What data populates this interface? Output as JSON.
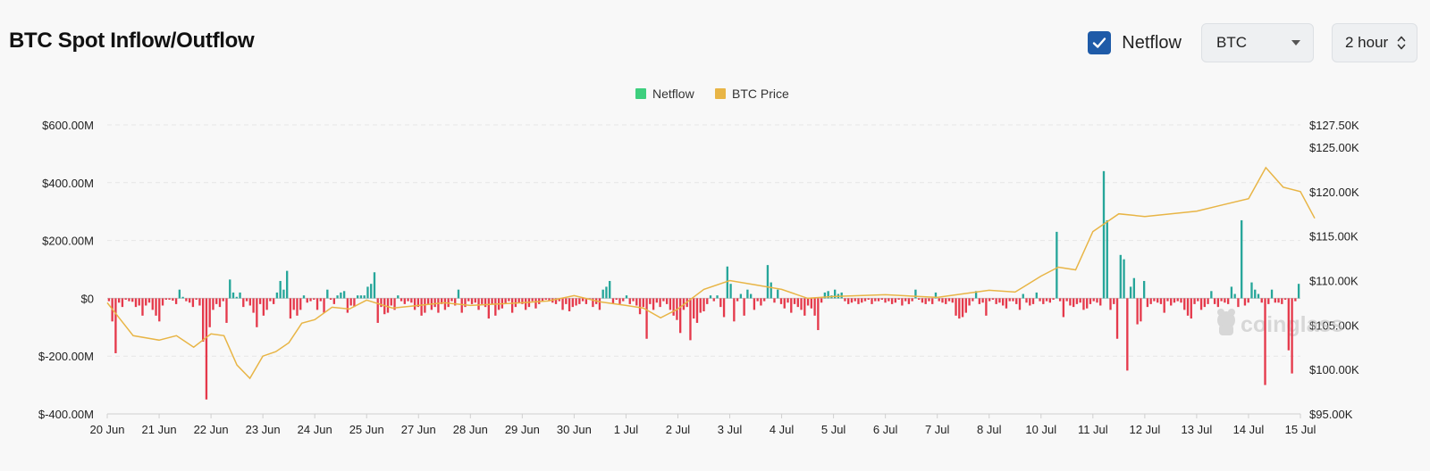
{
  "header": {
    "title": "BTC Spot Inflow/Outflow",
    "netflow_toggle": {
      "label": "Netflow",
      "checked": true
    },
    "asset_select": {
      "value": "BTC"
    },
    "interval_select": {
      "value": "2 hour"
    }
  },
  "watermark": "coinglass",
  "colors": {
    "positive": "#26a69a",
    "negative": "#e5394b",
    "price": "#e8b546",
    "legend_netflow": "#3ecf7e",
    "legend_price": "#e8b546"
  },
  "chart_data": {
    "type": "bar",
    "legend": [
      "Netflow",
      "BTC Price"
    ],
    "legend_placement": "top-center",
    "grid": true,
    "x_ticks": [
      "20 Jun",
      "21 Jun",
      "22 Jun",
      "23 Jun",
      "24 Jun",
      "25 Jun",
      "27 Jun",
      "28 Jun",
      "29 Jun",
      "30 Jun",
      "1 Jul",
      "2 Jul",
      "3 Jul",
      "4 Jul",
      "5 Jul",
      "6 Jul",
      "7 Jul",
      "8 Jul",
      "10 Jul",
      "11 Jul",
      "12 Jul",
      "13 Jul",
      "14 Jul",
      "15 Jul"
    ],
    "y_left": {
      "ticks": [
        600000000,
        400000000,
        200000000,
        0,
        -200000000,
        -400000000
      ],
      "tick_labels": [
        "$600.00M",
        "$400.00M",
        "$200.00M",
        "$0",
        "$-200.00M",
        "$-400.00M"
      ],
      "range": [
        -400000000,
        600000000
      ]
    },
    "y_right": {
      "ticks": [
        127500,
        125000,
        120000,
        115000,
        110000,
        105000,
        100000,
        95000
      ],
      "tick_labels": [
        "$127.50K",
        "$125.00K",
        "$120.00K",
        "$115.00K",
        "$110.00K",
        "$105.00K",
        "$100.00K",
        "$95.00K"
      ],
      "range": [
        95000,
        127500
      ]
    },
    "series": [
      {
        "name": "Netflow",
        "type": "bar",
        "axis": "left",
        "x_start": "20 Jun",
        "x_end": "15 Jul",
        "values": [
          -10,
          -80,
          -190,
          -15,
          -30,
          -5,
          -10,
          -12,
          -30,
          -25,
          -60,
          -25,
          -15,
          -40,
          -60,
          -80,
          -25,
          -5,
          -5,
          -8,
          -20,
          30,
          5,
          -10,
          -15,
          -30,
          -5,
          -25,
          -150,
          -350,
          -100,
          -40,
          -20,
          -30,
          -10,
          -85,
          65,
          20,
          5,
          20,
          -30,
          -10,
          -25,
          -50,
          -100,
          -20,
          -60,
          -40,
          -10,
          -20,
          20,
          60,
          30,
          95,
          -70,
          -40,
          -60,
          -40,
          10,
          -15,
          -10,
          -5,
          -40,
          -10,
          -50,
          30,
          -5,
          -20,
          10,
          20,
          25,
          -50,
          -25,
          -30,
          10,
          10,
          10,
          40,
          50,
          90,
          -85,
          -30,
          -55,
          -50,
          -25,
          -40,
          10,
          -10,
          -20,
          -10,
          -15,
          -40,
          -30,
          -60,
          -50,
          -20,
          -40,
          -30,
          -50,
          -20,
          -40,
          -30,
          -10,
          -25,
          30,
          -50,
          -30,
          -10,
          -20,
          -15,
          -40,
          -20,
          -30,
          -70,
          -20,
          -60,
          -40,
          -35,
          -20,
          -10,
          -50,
          -30,
          -15,
          -20,
          -40,
          -30,
          -10,
          -35,
          -20,
          -10,
          -5,
          -10,
          -15,
          -20,
          -10,
          -40,
          -20,
          -45,
          -30,
          -25,
          -20,
          -10,
          -20,
          -5,
          -30,
          -20,
          -40,
          30,
          40,
          60,
          -20,
          -5,
          -20,
          -10,
          10,
          -20,
          -10,
          -25,
          -55,
          -30,
          -140,
          -20,
          -40,
          -15,
          -30,
          -10,
          -20,
          -40,
          -60,
          -75,
          -120,
          -40,
          -30,
          -145,
          -70,
          -85,
          -50,
          -45,
          -20,
          10,
          -10,
          10,
          -30,
          -65,
          110,
          50,
          -80,
          -10,
          15,
          -60,
          30,
          15,
          -40,
          -10,
          -25,
          -10,
          115,
          55,
          -15,
          30,
          -20,
          -35,
          -15,
          -50,
          -20,
          -30,
          -40,
          -60,
          -25,
          -35,
          -60,
          -110,
          -15,
          20,
          25,
          10,
          30,
          15,
          20,
          -10,
          -20,
          -15,
          -10,
          -20,
          -15,
          -10,
          -5,
          -20,
          -10,
          -10,
          -5,
          -15,
          -10,
          -20,
          -15,
          -5,
          -25,
          -10,
          -20,
          -10,
          30,
          -5,
          -15,
          -20,
          -10,
          -20,
          20,
          -10,
          -15,
          -20,
          -10,
          -15,
          -60,
          -70,
          -65,
          -50,
          -25,
          -10,
          25,
          -20,
          -15,
          -60,
          -10,
          -5,
          -20,
          -15,
          -25,
          -35,
          -10,
          -10,
          -20,
          -40,
          15,
          -15,
          -25,
          -20,
          20,
          -10,
          -20,
          -10,
          -15,
          -5,
          230,
          -10,
          -65,
          -10,
          -25,
          -30,
          -20,
          -15,
          -40,
          -35,
          -20,
          -10,
          -15,
          -25,
          440,
          270,
          -40,
          -20,
          -140,
          150,
          135,
          -250,
          40,
          70,
          -90,
          -80,
          60,
          -30,
          -20,
          -10,
          -15,
          -20,
          -50,
          -10,
          -25,
          -15,
          -10,
          -15,
          -40,
          -60,
          -70,
          -20,
          -10,
          -40,
          -30,
          -20,
          25,
          -20,
          -30,
          -10,
          -15,
          -20,
          40,
          15,
          -30,
          270,
          -25,
          -15,
          55,
          30,
          15,
          -15,
          -300,
          -20,
          30,
          -15,
          -15,
          -20,
          -5,
          -180,
          -260,
          -10,
          50
        ]
      },
      {
        "name": "BTC Price",
        "type": "line",
        "axis": "right",
        "points": [
          [
            "20 Jun",
            107500
          ],
          [
            "20 Jun",
            103800
          ],
          [
            "21 Jun",
            103300
          ],
          [
            "21 Jun",
            103800
          ],
          [
            "21 Jun",
            102500
          ],
          [
            "22 Jun",
            104000
          ],
          [
            "22 Jun",
            103800
          ],
          [
            "22 Jun",
            100500
          ],
          [
            "22 Jun",
            99000
          ],
          [
            "23 Jun",
            101500
          ],
          [
            "23 Jun",
            102000
          ],
          [
            "23 Jun",
            103000
          ],
          [
            "23 Jun",
            105200
          ],
          [
            "24 Jun",
            105600
          ],
          [
            "24 Jun",
            107000
          ],
          [
            "24 Jun",
            106800
          ],
          [
            "25 Jun",
            107800
          ],
          [
            "25 Jun",
            106900
          ],
          [
            "27 Jun",
            107200
          ],
          [
            "27 Jun",
            107500
          ],
          [
            "28 Jun",
            107200
          ],
          [
            "29 Jun",
            107500
          ],
          [
            "29 Jun",
            107700
          ],
          [
            "30 Jun",
            108300
          ],
          [
            "30 Jun",
            107600
          ],
          [
            "1 Jul",
            107200
          ],
          [
            "1 Jul",
            106900
          ],
          [
            "1 Jul",
            105800
          ],
          [
            "2 Jul",
            106800
          ],
          [
            "2 Jul",
            109000
          ],
          [
            "3 Jul",
            110000
          ],
          [
            "3 Jul",
            109500
          ],
          [
            "4 Jul",
            109000
          ],
          [
            "4 Jul",
            108000
          ],
          [
            "5 Jul",
            108200
          ],
          [
            "6 Jul",
            108400
          ],
          [
            "7 Jul",
            108100
          ],
          [
            "7 Jul",
            108500
          ],
          [
            "8 Jul",
            108900
          ],
          [
            "8 Jul",
            108700
          ],
          [
            "10 Jul",
            110500
          ],
          [
            "10 Jul",
            111500
          ],
          [
            "10 Jul",
            111200
          ],
          [
            "11 Jul",
            115500
          ],
          [
            "11 Jul",
            117500
          ],
          [
            "12 Jul",
            117200
          ],
          [
            "12 Jul",
            117500
          ],
          [
            "13 Jul",
            117800
          ],
          [
            "13 Jul",
            118500
          ],
          [
            "14 Jul",
            119200
          ],
          [
            "14 Jul",
            122700
          ],
          [
            "14 Jul",
            120500
          ],
          [
            "15 Jul",
            120000
          ],
          [
            "15 Jul",
            117000
          ]
        ]
      }
    ]
  }
}
